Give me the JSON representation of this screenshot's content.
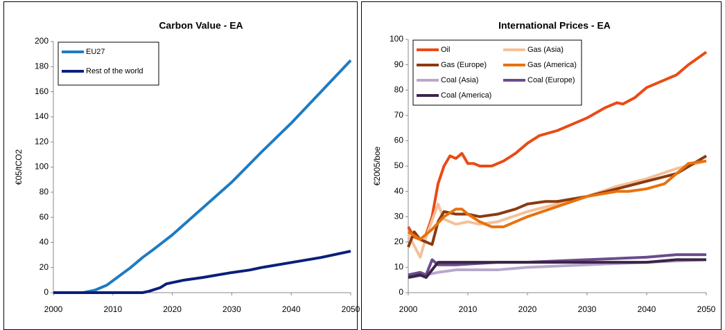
{
  "chart_data": [
    {
      "type": "line",
      "title": "Carbon Value - EA",
      "y_label": "€05/tCO2",
      "xlim": [
        2000,
        2050
      ],
      "xticks": [
        2000,
        2010,
        2020,
        2030,
        2040,
        2050
      ],
      "ylim": [
        0,
        200
      ],
      "yticks": [
        0,
        20,
        40,
        60,
        80,
        100,
        120,
        140,
        160,
        180,
        200
      ],
      "legend": "upper left",
      "series": [
        {
          "name": "EU27",
          "color": "#1f7bc1",
          "x": [
            2000,
            2005,
            2007,
            2009,
            2011,
            2013,
            2015,
            2017,
            2020,
            2025,
            2030,
            2035,
            2040,
            2045,
            2050
          ],
          "values": [
            0,
            0,
            2,
            6,
            13,
            20,
            28,
            35,
            46,
            67,
            88,
            112,
            135,
            160,
            185
          ]
        },
        {
          "name": "Rest of the world",
          "color": "#0a1f7a",
          "x": [
            2000,
            2015,
            2016,
            2018,
            2019,
            2020,
            2022,
            2025,
            2030,
            2033,
            2035,
            2040,
            2045,
            2050
          ],
          "values": [
            0,
            0,
            1,
            4,
            7,
            8,
            10,
            12,
            16,
            18,
            20,
            24,
            28,
            33
          ]
        }
      ]
    },
    {
      "type": "line",
      "title": "International Prices - EA",
      "y_label": "€2005/boe",
      "xlim": [
        2000,
        2050
      ],
      "xticks": [
        2000,
        2010,
        2020,
        2030,
        2040,
        2050
      ],
      "ylim": [
        0,
        100
      ],
      "yticks": [
        0,
        10,
        20,
        30,
        40,
        50,
        60,
        70,
        80,
        90,
        100
      ],
      "legend": "upper left",
      "series": [
        {
          "name": "Oil",
          "color": "#ea4a14",
          "x": [
            2000,
            2001,
            2002,
            2003,
            2004,
            2005,
            2006,
            2007,
            2008,
            2009,
            2010,
            2011,
            2012,
            2014,
            2016,
            2018,
            2020,
            2022,
            2025,
            2028,
            2030,
            2033,
            2035,
            2036,
            2038,
            2040,
            2043,
            2045,
            2047,
            2050
          ],
          "values": [
            26,
            22,
            21,
            23,
            30,
            43,
            50,
            54,
            53,
            55,
            51,
            51,
            50,
            50,
            52,
            55,
            59,
            62,
            64,
            67,
            69,
            73,
            75,
            74.5,
            77,
            81,
            84,
            86,
            90,
            95
          ]
        },
        {
          "name": "Gas (Asia)",
          "color": "#f5c09a",
          "x": [
            2000,
            2002,
            2003,
            2005,
            2006,
            2008,
            2010,
            2012,
            2015,
            2020,
            2025,
            2030,
            2035,
            2040,
            2045,
            2050
          ],
          "values": [
            23,
            14,
            22,
            35,
            29,
            27,
            28,
            27,
            28,
            32,
            35,
            38,
            42,
            45,
            49,
            52
          ]
        },
        {
          "name": "Gas (Europe)",
          "color": "#8b3a10",
          "x": [
            2000,
            2001,
            2002,
            2004,
            2005,
            2006,
            2008,
            2010,
            2012,
            2015,
            2018,
            2020,
            2023,
            2025,
            2030,
            2035,
            2040,
            2045,
            2050
          ],
          "values": [
            18,
            24,
            21,
            19,
            28,
            32,
            31,
            31,
            30,
            31,
            33,
            35,
            36,
            36,
            38,
            41,
            44,
            47,
            54
          ]
        },
        {
          "name": "Gas (America)",
          "color": "#e8720c",
          "x": [
            2000,
            2002,
            2004,
            2006,
            2008,
            2009,
            2010,
            2012,
            2014,
            2016,
            2018,
            2020,
            2025,
            2030,
            2035,
            2037,
            2040,
            2043,
            2045,
            2047,
            2050
          ],
          "values": [
            24,
            21,
            25,
            30,
            33,
            33,
            31,
            28,
            26,
            26,
            28,
            30,
            34,
            38,
            40,
            40,
            41,
            43,
            47,
            51,
            52
          ]
        },
        {
          "name": "Coal (Asia)",
          "color": "#b8a8cc",
          "x": [
            2000,
            2003,
            2005,
            2008,
            2015,
            2020,
            2030,
            2040,
            2050
          ],
          "values": [
            6,
            7,
            8,
            9,
            9,
            10,
            11,
            12,
            13
          ]
        },
        {
          "name": "Coal (Europe)",
          "color": "#6a4c8c",
          "x": [
            2000,
            2002,
            2003,
            2004,
            2005,
            2008,
            2015,
            2020,
            2030,
            2040,
            2045,
            2050
          ],
          "values": [
            7,
            8,
            7,
            13,
            11,
            11,
            12,
            12,
            13,
            14,
            15,
            15
          ]
        },
        {
          "name": "Coal (America)",
          "color": "#3c2448",
          "x": [
            2000,
            2002,
            2003,
            2005,
            2008,
            2020,
            2030,
            2040,
            2045,
            2050
          ],
          "values": [
            6,
            7,
            6,
            12,
            12,
            12,
            12,
            12,
            13,
            13
          ]
        }
      ]
    }
  ]
}
